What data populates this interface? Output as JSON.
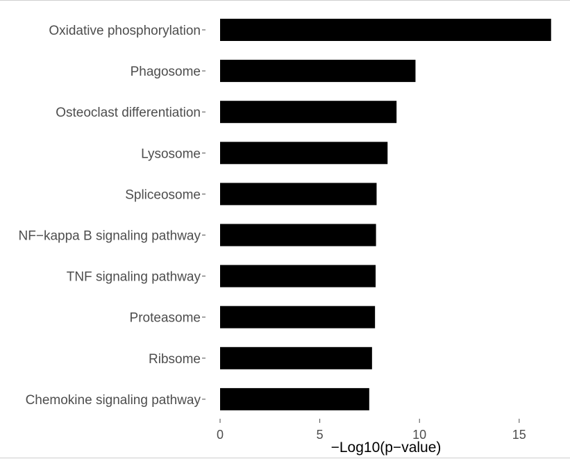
{
  "chart_data": {
    "type": "bar",
    "orientation": "horizontal",
    "categories": [
      "Oxidative phosphorylation",
      "Phagosome",
      "Osteoclast differentiation",
      "Lysosome",
      "Spliceosome",
      "NF−kappa B signaling pathway",
      "TNF signaling pathway",
      "Proteasome",
      "Ribsome",
      "Chemokine signaling pathway"
    ],
    "values": [
      16.6,
      9.8,
      8.85,
      8.4,
      7.85,
      7.82,
      7.8,
      7.77,
      7.62,
      7.48
    ],
    "xlabel": "−Log10(p−value)",
    "ylabel": "",
    "xlim": [
      0,
      17
    ],
    "xticks": [
      0,
      5,
      10,
      15
    ],
    "bar_color": "#000000",
    "grid": false
  }
}
